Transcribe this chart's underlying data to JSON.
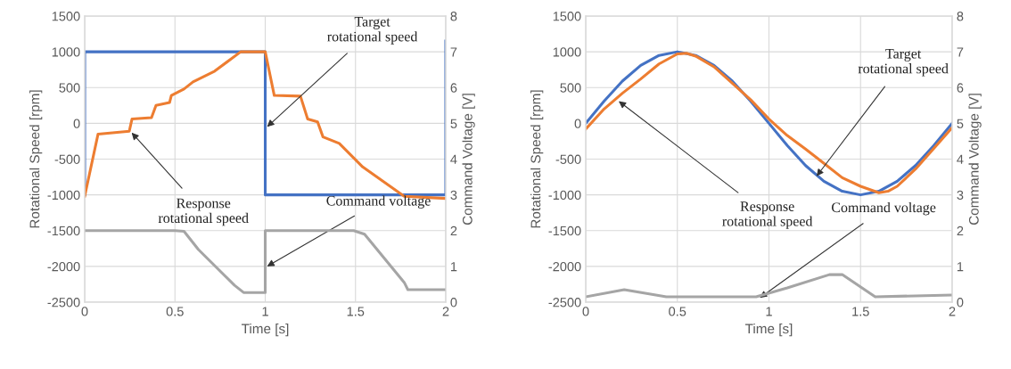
{
  "chart_data": [
    {
      "type": "line",
      "xlabel": "Time [s]",
      "ylabel": "Rotational Speed [rpm]",
      "y2label": "Command Voltage [V]",
      "xlim": [
        0,
        2
      ],
      "xticks": [
        0,
        0.5,
        1,
        1.5,
        2
      ],
      "ylim": [
        -2500,
        1500
      ],
      "yticks": [
        -2500,
        -2000,
        -1500,
        -1000,
        -500,
        0,
        500,
        1000,
        1500
      ],
      "y2lim": [
        0,
        8
      ],
      "y2ticks": [
        0,
        1,
        2,
        3,
        4,
        5,
        6,
        7,
        8
      ],
      "grid": true,
      "marker": "none",
      "line_style": "solid",
      "series": [
        {
          "color": "#4472c4",
          "x": [
            0,
            0,
            1,
            1,
            2,
            2
          ],
          "values": [
            -1000,
            1000,
            1000,
            -1000,
            -1000,
            1150
          ]
        },
        {
          "color": "#ed7d31",
          "x": [
            0,
            0.074,
            0.247,
            0.262,
            0.37,
            0.395,
            0.47,
            0.48,
            0.55,
            0.6,
            0.72,
            0.864,
            1.0,
            1.05,
            1.195,
            1.235,
            1.29,
            1.32,
            1.41,
            1.54,
            1.77,
            2.0
          ],
          "values": [
            -1020,
            -150,
            -110,
            60,
            80,
            250,
            290,
            390,
            480,
            580,
            730,
            1000,
            1000,
            390,
            380,
            60,
            20,
            -190,
            -280,
            -610,
            -1020,
            -1050
          ]
        },
        {
          "color": "#a5a5a5",
          "axis": "y2",
          "x": [
            0,
            0.5,
            0.55,
            0.63,
            0.83,
            0.88,
            1.0,
            1.0,
            1.49,
            1.55,
            1.77,
            1.79,
            2.0
          ],
          "values": [
            2.0,
            2.0,
            1.98,
            1.47,
            0.47,
            0.27,
            0.27,
            2.0,
            2.0,
            1.9,
            0.55,
            0.35,
            0.35
          ]
        }
      ],
      "annotations": [
        {
          "text": "Target\nrotational speed",
          "x": 1.01,
          "y": -50
        },
        {
          "text": "Response\nrotational speed",
          "x": 0.26,
          "y": -130
        },
        {
          "text": "Command voltage",
          "x": 1.01,
          "y": -2000
        }
      ]
    },
    {
      "type": "line",
      "xlabel": "Time [s]",
      "ylabel": "Rotational Speed [rpm]",
      "y2label": "Command Voltage [V]",
      "xlim": [
        0,
        2
      ],
      "xticks": [
        0,
        0.5,
        1,
        1.5,
        2
      ],
      "ylim": [
        -2500,
        1500
      ],
      "yticks": [
        -2500,
        -2000,
        -1500,
        -1000,
        -500,
        0,
        500,
        1000,
        1500
      ],
      "y2lim": [
        0,
        8
      ],
      "y2ticks": [
        0,
        1,
        2,
        3,
        4,
        5,
        6,
        7,
        8
      ],
      "grid": true,
      "marker": "none",
      "line_style": "solid",
      "series": [
        {
          "color": "#4472c4",
          "x": [
            0,
            0.1,
            0.2,
            0.3,
            0.4,
            0.5,
            0.6,
            0.7,
            0.8,
            0.9,
            1.0,
            1.1,
            1.2,
            1.3,
            1.4,
            1.5,
            1.6,
            1.7,
            1.8,
            1.9,
            2.0
          ],
          "values": [
            0,
            310,
            590,
            810,
            950,
            1000,
            950,
            810,
            590,
            310,
            0,
            -310,
            -590,
            -810,
            -950,
            -1000,
            -950,
            -810,
            -590,
            -310,
            0
          ]
        },
        {
          "color": "#ed7d31",
          "x": [
            0,
            0.1,
            0.2,
            0.3,
            0.4,
            0.5,
            0.55,
            0.6,
            0.7,
            0.8,
            0.9,
            1.0,
            1.1,
            1.2,
            1.3,
            1.4,
            1.5,
            1.6,
            1.65,
            1.7,
            1.8,
            1.9,
            2.0
          ],
          "values": [
            -80,
            200,
            420,
            620,
            830,
            970,
            980,
            940,
            790,
            560,
            330,
            60,
            -170,
            -360,
            -560,
            -760,
            -880,
            -970,
            -950,
            -880,
            -640,
            -350,
            -60
          ]
        },
        {
          "color": "#a5a5a5",
          "axis": "y2",
          "x": [
            0,
            0.21,
            0.44,
            0.93,
            1.1,
            1.33,
            1.4,
            1.58,
            2.0
          ],
          "values": [
            0.15,
            0.35,
            0.15,
            0.15,
            0.4,
            0.77,
            0.77,
            0.15,
            0.2
          ]
        }
      ],
      "annotations": [
        {
          "text": "Response\nrotational speed",
          "x": 0.18,
          "y": 310
        },
        {
          "text": "Target\nrotational speed",
          "x": 1.26,
          "y": -740
        },
        {
          "text": "Command voltage",
          "x": 0.95,
          "y": -2440
        }
      ]
    }
  ]
}
